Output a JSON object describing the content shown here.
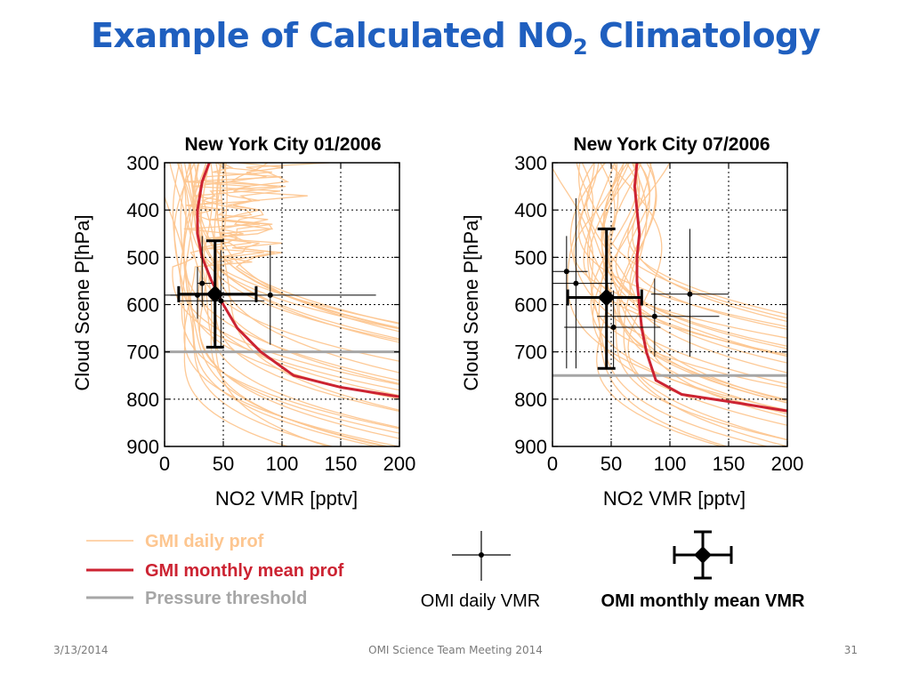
{
  "slide": {
    "title_main": "Example of Calculated NO",
    "title_sub": "2",
    "title_end": " Climatology"
  },
  "chart_data": [
    {
      "type": "line",
      "title": "New York City 01/2006",
      "xlabel": "NO2 VMR [pptv]",
      "ylabel": "Cloud Scene P[hPa]",
      "xlim": [
        0,
        200
      ],
      "ylim": [
        900,
        300
      ],
      "y_inverted": true,
      "xticks": [
        "0",
        "50",
        "100",
        "150",
        "200"
      ],
      "yticks": [
        "300",
        "400",
        "500",
        "600",
        "700",
        "800",
        "900"
      ],
      "grid": true,
      "pressure_threshold": 700,
      "monthly_mean_profile": {
        "x": [
          38,
          32,
          28,
          28,
          32,
          40,
          50,
          62,
          82,
          110,
          150,
          200
        ],
        "y": [
          300,
          340,
          400,
          450,
          500,
          550,
          600,
          650,
          700,
          750,
          775,
          795
        ]
      },
      "daily_profiles_count": 30,
      "omi_daily": [
        {
          "x": 32,
          "y": 555,
          "xerr": [
            28,
            40
          ],
          "yerr": [
            455,
            605
          ]
        },
        {
          "x": 48,
          "y": 592,
          "xerr": [
            12,
            85
          ],
          "yerr": [
            485,
            690
          ]
        },
        {
          "x": 90,
          "y": 580,
          "xerr": [
            0,
            180
          ],
          "yerr": [
            475,
            685
          ]
        },
        {
          "x": 28,
          "y": 580,
          "xerr": [
            5,
            55
          ],
          "yerr": [
            520,
            630
          ]
        }
      ],
      "omi_monthly_mean": {
        "x": 43,
        "y": 578,
        "xerr": [
          12,
          78
        ],
        "yerr": [
          465,
          690
        ]
      }
    },
    {
      "type": "line",
      "title": "New York City 07/2006",
      "xlabel": "NO2 VMR [pptv]",
      "ylabel": "Cloud Scene P[hPa]",
      "xlim": [
        0,
        200
      ],
      "ylim": [
        900,
        300
      ],
      "y_inverted": true,
      "xticks": [
        "0",
        "50",
        "100",
        "150",
        "200"
      ],
      "yticks": [
        "300",
        "400",
        "500",
        "600",
        "700",
        "800",
        "900"
      ],
      "grid": true,
      "pressure_threshold": 750,
      "monthly_mean_profile": {
        "x": [
          72,
          70,
          72,
          74,
          72,
          72,
          74,
          76,
          80,
          88,
          110,
          150,
          200
        ],
        "y": [
          300,
          350,
          400,
          450,
          500,
          550,
          600,
          650,
          700,
          760,
          790,
          805,
          825
        ]
      },
      "daily_profiles_count": 30,
      "omi_daily": [
        {
          "x": 12,
          "y": 530,
          "xerr": [
            0,
            30
          ],
          "yerr": [
            455,
            735
          ]
        },
        {
          "x": 20,
          "y": 555,
          "xerr": [
            0,
            52
          ],
          "yerr": [
            375,
            735
          ]
        },
        {
          "x": 52,
          "y": 648,
          "xerr": [
            10,
            92
          ],
          "yerr": [
            570,
            735
          ]
        },
        {
          "x": 87,
          "y": 625,
          "xerr": [
            38,
            142
          ],
          "yerr": [
            545,
            710
          ]
        },
        {
          "x": 117,
          "y": 578,
          "xerr": [
            84,
            150
          ],
          "yerr": [
            440,
            710
          ]
        }
      ],
      "omi_monthly_mean": {
        "x": 46,
        "y": 585,
        "xerr": [
          13,
          76
        ],
        "yerr": [
          440,
          735
        ]
      }
    }
  ],
  "legend": {
    "daily_prof": "GMI daily prof",
    "monthly_mean_prof": "GMI monthly mean prof",
    "pressure_threshold": "Pressure threshold",
    "omi_daily": "OMI daily VMR",
    "omi_monthly": "OMI monthly mean VMR"
  },
  "colors": {
    "daily_prof": "#fdc690",
    "monthly_mean_prof": "#cc2332",
    "pressure_threshold": "#a6a6a6",
    "title": "#1f5fbf"
  },
  "footer": {
    "date": "3/13/2014",
    "center": "OMI Science Team Meeting 2014",
    "page": "31"
  }
}
